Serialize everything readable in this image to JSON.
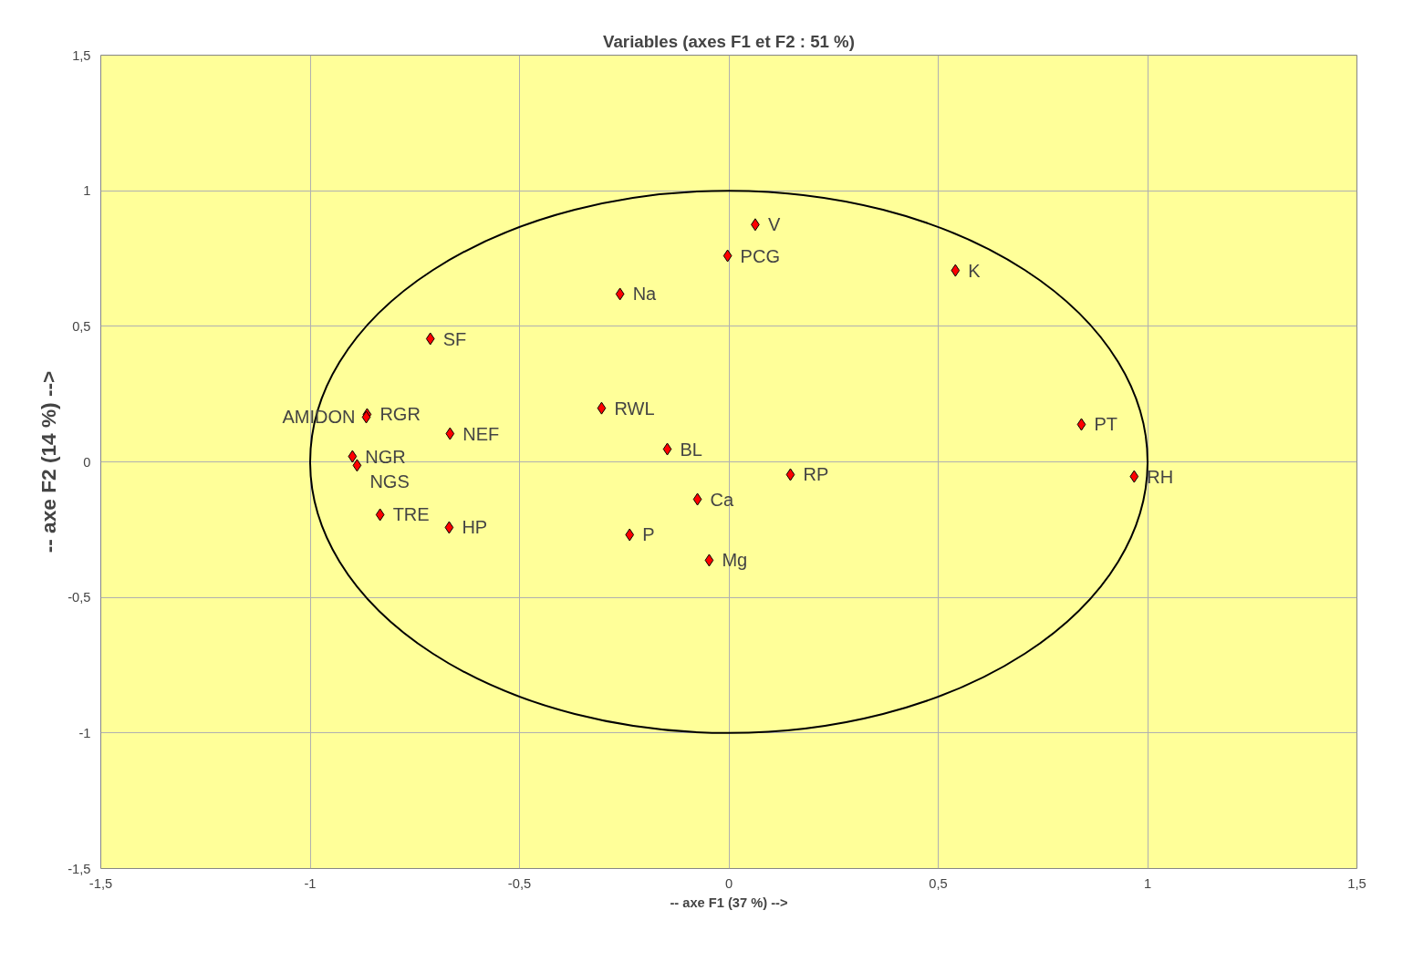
{
  "chart_data": {
    "type": "scatter",
    "title": "Variables (axes F1 et F2 : 51 %)",
    "xlabel": "-- axe F1 (37 %) -->",
    "ylabel": "-- axe F2 (14 %) -->",
    "xlim": [
      -1.5,
      1.5
    ],
    "ylim": [
      -1.5,
      1.5
    ],
    "xticks": [
      {
        "value": -1.5,
        "label": "-1,5"
      },
      -1,
      {
        "value": -0.5,
        "label": "-0,5"
      },
      0,
      {
        "value": 0.5,
        "label": "0,5"
      },
      1,
      {
        "value": 1.5,
        "label": "1,5"
      }
    ],
    "yticks": [
      {
        "value": -1.5,
        "label": "-1,5"
      },
      -1,
      {
        "value": -0.5,
        "label": "-0,5"
      },
      0,
      {
        "value": 0.5,
        "label": "0,5"
      },
      1,
      {
        "value": 1.5,
        "label": "1,5"
      }
    ],
    "grid": true,
    "marker": "diamond",
    "series": [
      {
        "color": "#ff0000",
        "x": [
          0.063,
          -0.003,
          0.541,
          -0.26,
          -0.713,
          -0.864,
          -0.866,
          -0.304,
          -0.666,
          0.842,
          -0.147,
          -0.899,
          -0.888,
          0.147,
          0.968,
          -0.075,
          -0.833,
          -0.668,
          -0.237,
          -0.047
        ],
        "values": [
          0.875,
          0.76,
          0.706,
          0.619,
          0.454,
          0.175,
          0.165,
          0.198,
          0.104,
          0.138,
          0.047,
          0.02,
          -0.013,
          -0.047,
          -0.054,
          -0.138,
          -0.195,
          -0.242,
          -0.269,
          -0.363
        ],
        "value_labels": [
          "V",
          "PCG",
          "K",
          "Na",
          "SF",
          "RGR",
          "AMIDON",
          "RWL",
          "NEF",
          "PT",
          "BL",
          "NGR",
          "NGS",
          "RP",
          "RH",
          "Ca",
          "TRE",
          "HP",
          "P",
          "Mg"
        ]
      }
    ]
  }
}
